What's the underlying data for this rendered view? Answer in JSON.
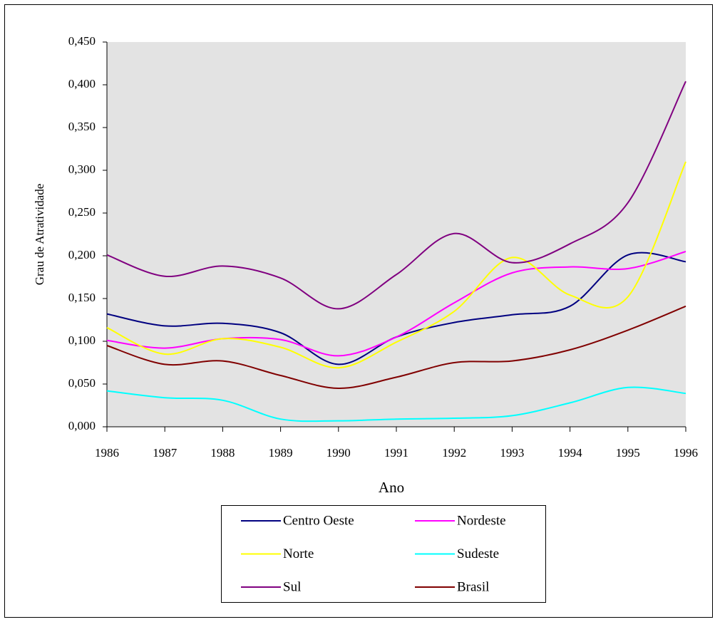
{
  "chart_data": {
    "type": "line",
    "x_label": "Ano",
    "y_label": "Grau de Atratividade",
    "x": [
      1986,
      1987,
      1988,
      1989,
      1990,
      1991,
      1992,
      1993,
      1994,
      1995,
      1996
    ],
    "xlim": [
      1986,
      1996
    ],
    "xticks": [
      1986,
      1987,
      1988,
      1989,
      1990,
      1991,
      1992,
      1993,
      1994,
      1995,
      1996
    ],
    "ylim": [
      0,
      0.45
    ],
    "yticks": [
      {
        "value": 0,
        "label": "0,000"
      },
      {
        "value": 0.05,
        "label": "0,050"
      },
      {
        "value": 0.1,
        "label": "0,100"
      },
      {
        "value": 0.15,
        "label": "0,150"
      },
      {
        "value": 0.2,
        "label": "0,200"
      },
      {
        "value": 0.25,
        "label": "0,250"
      },
      {
        "value": 0.3,
        "label": "0,300"
      },
      {
        "value": 0.35,
        "label": "0,350"
      },
      {
        "value": 0.4,
        "label": "0,400"
      },
      {
        "value": 0.45,
        "label": "0,450"
      }
    ],
    "smooth": true,
    "background": "#e3e3e3",
    "series": [
      {
        "name": "Centro Oeste",
        "color": "#000080",
        "values": [
          0.132,
          0.118,
          0.121,
          0.11,
          0.073,
          0.105,
          0.122,
          0.131,
          0.141,
          0.201,
          0.193
        ]
      },
      {
        "name": "Nordeste",
        "color": "#ff00ff",
        "values": [
          0.101,
          0.092,
          0.103,
          0.102,
          0.083,
          0.105,
          0.145,
          0.18,
          0.187,
          0.185,
          0.205
        ]
      },
      {
        "name": "Norte",
        "color": "#ffff00",
        "values": [
          0.116,
          0.085,
          0.103,
          0.093,
          0.069,
          0.099,
          0.135,
          0.198,
          0.154,
          0.152,
          0.31
        ]
      },
      {
        "name": "Sudeste",
        "color": "#00ffff",
        "values": [
          0.042,
          0.034,
          0.031,
          0.009,
          0.007,
          0.009,
          0.01,
          0.013,
          0.028,
          0.046,
          0.039
        ]
      },
      {
        "name": "Sul",
        "color": "#800080",
        "values": [
          0.201,
          0.176,
          0.188,
          0.174,
          0.138,
          0.178,
          0.226,
          0.192,
          0.214,
          0.262,
          0.404
        ]
      },
      {
        "name": "Brasil",
        "color": "#800000",
        "values": [
          0.095,
          0.073,
          0.077,
          0.06,
          0.045,
          0.058,
          0.075,
          0.077,
          0.09,
          0.113,
          0.141
        ]
      }
    ]
  }
}
